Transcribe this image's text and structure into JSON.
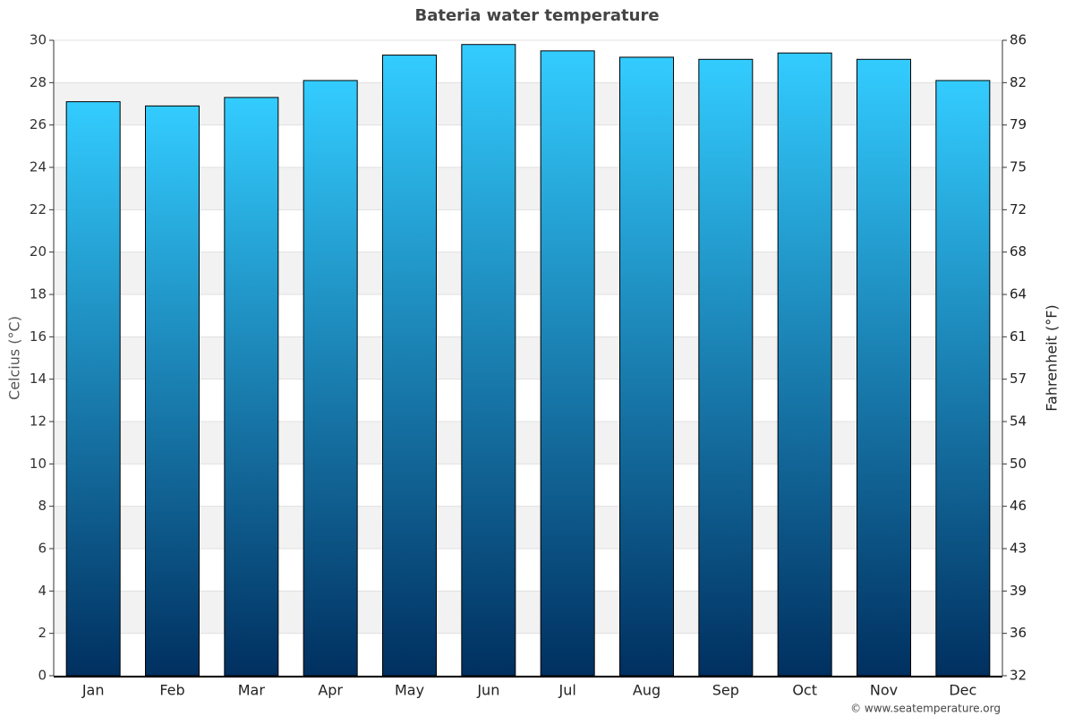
{
  "chart_data": {
    "type": "bar",
    "title": "Bateria water temperature",
    "categories": [
      "Jan",
      "Feb",
      "Mar",
      "Apr",
      "May",
      "Jun",
      "Jul",
      "Aug",
      "Sep",
      "Oct",
      "Nov",
      "Dec"
    ],
    "values": [
      27.1,
      26.9,
      27.3,
      28.1,
      29.3,
      29.8,
      29.5,
      29.2,
      29.1,
      29.4,
      29.1,
      28.1
    ],
    "color": [
      "#33ccff",
      "#003060"
    ],
    "ylabel": "Celcius (°C)",
    "y2label": "Fahrenheit (°F)",
    "ylim": [
      0,
      30
    ],
    "yticks": [
      0,
      2,
      4,
      6,
      8,
      10,
      12,
      14,
      16,
      18,
      20,
      22,
      24,
      26,
      28,
      30
    ],
    "y2lim": [
      32,
      86
    ],
    "y2ticks": [
      32,
      {
        "value": 35.6,
        "label": "36"
      },
      {
        "value": 39.2,
        "label": "39"
      },
      {
        "value": 42.8,
        "label": "43"
      },
      {
        "value": 46.4,
        "label": "46"
      },
      50,
      {
        "value": 53.6,
        "label": "54"
      },
      {
        "value": 57.2,
        "label": "57"
      },
      {
        "value": 60.8,
        "label": "61"
      },
      {
        "value": 64.4,
        "label": "64"
      },
      68,
      {
        "value": 71.6,
        "label": "72"
      },
      {
        "value": 75.2,
        "label": "75"
      },
      {
        "value": 78.8,
        "label": "79"
      },
      {
        "value": 82.4,
        "label": "82"
      },
      86
    ],
    "grid": true,
    "source": "© www.seatemperature.org"
  }
}
